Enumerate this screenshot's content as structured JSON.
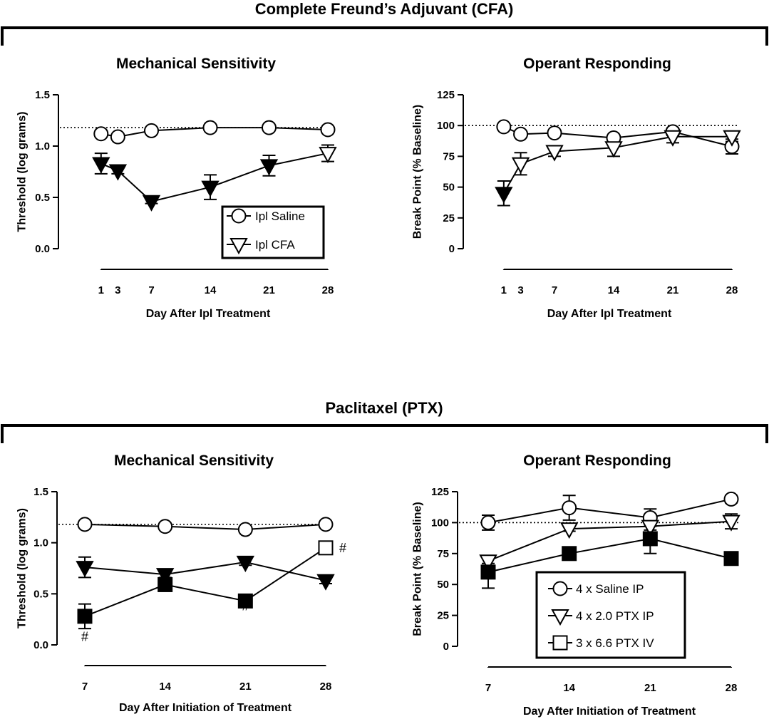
{
  "sections": [
    {
      "title": "Complete Freund’s Adjuvant (CFA)"
    },
    {
      "title": "Paclitaxel (PTX)"
    }
  ],
  "chart_data": [
    {
      "id": "cfa-mech",
      "type": "line",
      "title": "Mechanical Sensitivity",
      "xlabel": "Day After Ipl Treatment",
      "ylabel": "Threshold (log grams)",
      "xlim": [
        0,
        28
      ],
      "ylim": [
        0,
        1.5
      ],
      "xticks": [
        1,
        3,
        7,
        14,
        21,
        28
      ],
      "yticks": [
        0.0,
        0.5,
        1.0,
        1.5
      ],
      "ytick_labels": [
        "0.0",
        "0.5",
        "1.0",
        "1.5"
      ],
      "baseline": 1.18,
      "legend_position": "bottom-right",
      "series": [
        {
          "name": "Ipl Saline",
          "marker": "circle-open",
          "x": [
            1,
            3,
            7,
            14,
            21,
            28
          ],
          "y": [
            1.12,
            1.09,
            1.15,
            1.18,
            1.18,
            1.16
          ],
          "err": [
            0.02,
            0.02,
            0.02,
            0.02,
            0.02,
            0.02
          ],
          "legend": true
        },
        {
          "name": "Ipl CFA (filled)",
          "marker": "triangle-filled",
          "x": [
            1,
            3,
            7,
            14,
            21
          ],
          "y": [
            0.83,
            0.76,
            0.46,
            0.6,
            0.81
          ],
          "err": [
            0.1,
            0.03,
            0.02,
            0.12,
            0.1
          ],
          "legend": false
        },
        {
          "name": "Ipl CFA",
          "marker": "triangle-open",
          "x": [
            28
          ],
          "y": [
            0.93
          ],
          "err": [
            0.08
          ],
          "legend": true
        }
      ],
      "annotations": []
    },
    {
      "id": "cfa-operant",
      "type": "line",
      "title": "Operant Responding",
      "xlabel": "Day After Ipl Treatment",
      "ylabel": "Break Point (% Baseline)",
      "xlim": [
        0,
        28
      ],
      "ylim": [
        0,
        125
      ],
      "xticks": [
        1,
        3,
        7,
        14,
        21,
        28
      ],
      "yticks": [
        0,
        25,
        50,
        75,
        100,
        125
      ],
      "ytick_labels": [
        "0",
        "25",
        "50",
        "75",
        "100",
        "125"
      ],
      "baseline": 100,
      "series": [
        {
          "name": "Ipl Saline",
          "marker": "circle-open",
          "x": [
            1,
            3,
            7,
            14,
            21,
            28
          ],
          "y": [
            99,
            93,
            94,
            90,
            95,
            83
          ],
          "err": [
            2,
            2,
            2,
            2,
            3,
            6
          ]
        },
        {
          "name": "Ipl CFA (filled)",
          "marker": "triangle-filled",
          "x": [
            1
          ],
          "y": [
            45
          ],
          "err": [
            10
          ]
        },
        {
          "name": "Ipl CFA",
          "marker": "triangle-open",
          "x": [
            3,
            7,
            14,
            21,
            28
          ],
          "y": [
            69,
            79,
            82,
            91,
            91
          ],
          "err": [
            9,
            4,
            7,
            5,
            4
          ]
        }
      ],
      "annotations": []
    },
    {
      "id": "ptx-mech",
      "type": "line",
      "title": "Mechanical Sensitivity",
      "xlabel": "Day After Initiation of Treatment",
      "ylabel": "Threshold (log grams)",
      "xlim": [
        7,
        28
      ],
      "ylim": [
        0,
        1.5
      ],
      "xticks": [
        7,
        14,
        21,
        28
      ],
      "yticks": [
        0.0,
        0.5,
        1.0,
        1.5
      ],
      "ytick_labels": [
        "0.0",
        "0.5",
        "1.0",
        "1.5"
      ],
      "baseline": 1.18,
      "series": [
        {
          "name": "4 x Saline IP",
          "marker": "circle-open",
          "x": [
            7,
            14,
            21,
            28
          ],
          "y": [
            1.18,
            1.16,
            1.13,
            1.18
          ],
          "err": [
            0.02,
            0.02,
            0.02,
            0.02
          ]
        },
        {
          "name": "4 x 2.0 PTX IP",
          "marker": "triangle-filled",
          "x": [
            7,
            14,
            21,
            28
          ],
          "y": [
            0.76,
            0.69,
            0.81,
            0.63
          ],
          "err": [
            0.1,
            0.03,
            0.03,
            0.03
          ]
        },
        {
          "name": "3 x 6.6 PTX IV (filled)",
          "marker": "square-filled",
          "x": [
            7,
            14,
            21
          ],
          "y": [
            0.28,
            0.59,
            0.43
          ],
          "err": [
            0.12,
            0.03,
            0.03
          ]
        },
        {
          "name": "3 x 6.6 PTX IV",
          "marker": "square-open",
          "x": [
            28
          ],
          "y": [
            0.95
          ],
          "err": [
            0.03
          ]
        }
      ],
      "annotations": [
        {
          "text": "#",
          "x": 7,
          "y": 0.04
        },
        {
          "text": "#",
          "x": 21,
          "y": 0.34
        },
        {
          "text": "#",
          "x": 28,
          "y": 0.95,
          "side": "right"
        }
      ]
    },
    {
      "id": "ptx-operant",
      "type": "line",
      "title": "Operant Responding",
      "xlabel": "Day After Initiation of Treatment",
      "ylabel": "Break Point (% Baseline)",
      "xlim": [
        7,
        28
      ],
      "ylim": [
        0,
        125
      ],
      "xticks": [
        7,
        14,
        21,
        28
      ],
      "yticks": [
        0,
        25,
        50,
        75,
        100,
        125
      ],
      "ytick_labels": [
        "0",
        "25",
        "50",
        "75",
        "100",
        "125"
      ],
      "baseline": 100,
      "legend_position": "center",
      "series": [
        {
          "name": "4 x Saline IP",
          "marker": "circle-open",
          "x": [
            7,
            14,
            21,
            28
          ],
          "y": [
            100,
            112,
            104,
            119
          ],
          "err": [
            6,
            10,
            7,
            3
          ],
          "legend": true
        },
        {
          "name": "4 x 2.0 PTX IP",
          "marker": "triangle-open",
          "x": [
            7,
            14,
            21,
            28
          ],
          "y": [
            69,
            95,
            97,
            101
          ],
          "err": [
            2,
            2,
            3,
            6
          ],
          "legend": true
        },
        {
          "name": "3 x 6.6 PTX IV",
          "marker": "square-filled",
          "x": [
            7,
            14,
            21,
            28
          ],
          "y": [
            60,
            75,
            87,
            71
          ],
          "err": [
            13,
            3,
            12,
            3
          ],
          "legend": false
        },
        {
          "name": "3 x 6.6 PTX IV",
          "marker": "square-open",
          "x": [],
          "y": [],
          "err": [],
          "legend": true
        }
      ],
      "annotations": []
    }
  ]
}
